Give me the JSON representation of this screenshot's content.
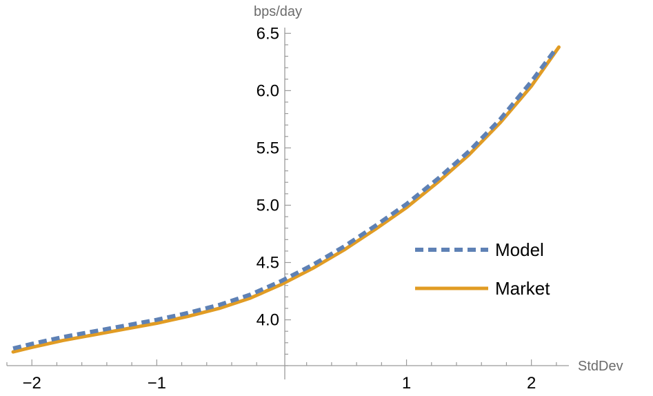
{
  "chart_data": {
    "type": "line",
    "xlabel": "StdDev",
    "ylabel": "bps/day",
    "xlim": [
      -2.2,
      2.3
    ],
    "ylim": [
      3.6,
      6.52
    ],
    "x_ticks": [
      {
        "value": -2,
        "label": "−2"
      },
      {
        "value": -1,
        "label": "−1"
      },
      {
        "value": 1,
        "label": "1"
      },
      {
        "value": 2,
        "label": "2"
      }
    ],
    "y_ticks": [
      {
        "value": 4.0,
        "label": "4.0"
      },
      {
        "value": 4.5,
        "label": "4.5"
      },
      {
        "value": 5.0,
        "label": "5.0"
      },
      {
        "value": 5.5,
        "label": "5.5"
      },
      {
        "value": 6.0,
        "label": "6.0"
      },
      {
        "value": 6.5,
        "label": "6.5"
      }
    ],
    "x_minor_step": 0.2,
    "y_minor_step": 0.1,
    "legend_position": "right",
    "series": [
      {
        "name": "Model",
        "style": "dashed",
        "color": "#5e81b5",
        "x": [
          -2.15,
          -2.0,
          -1.75,
          -1.5,
          -1.25,
          -1.0,
          -0.75,
          -0.5,
          -0.25,
          0.0,
          0.25,
          0.5,
          0.75,
          1.0,
          1.25,
          1.5,
          1.75,
          2.0,
          2.2
        ],
        "y": [
          3.75,
          3.79,
          3.85,
          3.9,
          3.95,
          4.0,
          4.06,
          4.13,
          4.22,
          4.34,
          4.48,
          4.64,
          4.82,
          5.01,
          5.23,
          5.47,
          5.75,
          6.08,
          6.37
        ]
      },
      {
        "name": "Market",
        "style": "solid",
        "color": "#e19c24",
        "x": [
          -2.15,
          -2.0,
          -1.75,
          -1.5,
          -1.25,
          -1.0,
          -0.75,
          -0.5,
          -0.25,
          0.0,
          0.25,
          0.5,
          0.75,
          1.0,
          1.25,
          1.5,
          1.75,
          2.0,
          2.22
        ],
        "y": [
          3.72,
          3.76,
          3.82,
          3.87,
          3.92,
          3.97,
          4.03,
          4.1,
          4.19,
          4.31,
          4.45,
          4.61,
          4.79,
          4.98,
          5.2,
          5.44,
          5.72,
          6.04,
          6.38
        ]
      }
    ]
  }
}
